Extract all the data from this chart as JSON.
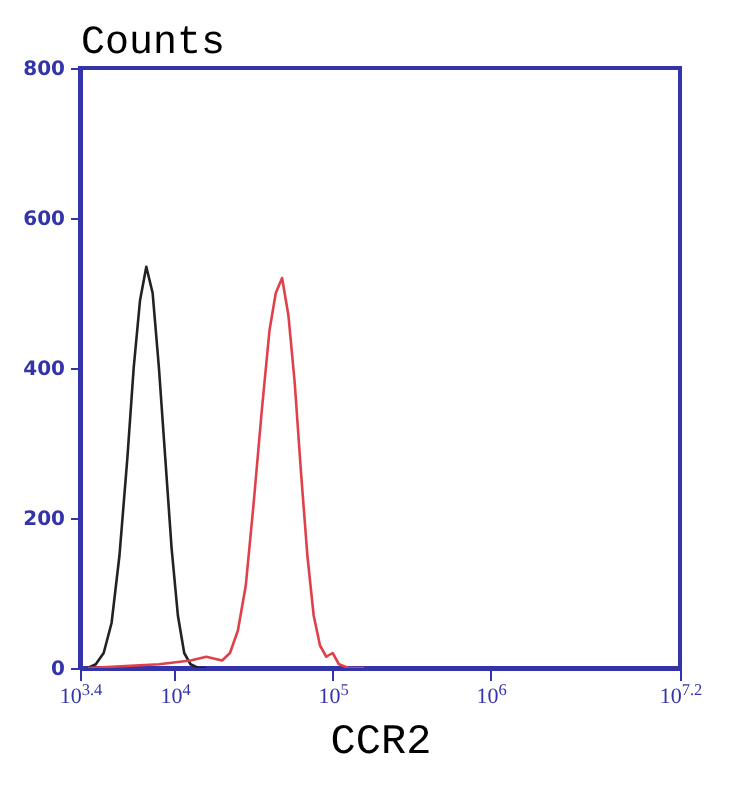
{
  "chart_data": {
    "type": "line",
    "ylabel": "Counts",
    "xlabel": "CCR2",
    "log": "x",
    "grid": false,
    "marker": "none",
    "line_style": "solid",
    "xlim": [
      2512,
      15848932
    ],
    "ylim": [
      0,
      800
    ],
    "yticks": [
      0,
      200,
      400,
      600,
      800
    ],
    "xticks": [
      {
        "value": 2512,
        "label": "10$^{3.4}$"
      },
      {
        "value": 10000,
        "label": "10$^{4}$"
      },
      {
        "value": 100000,
        "label": "10$^{5}$"
      },
      {
        "value": 1000000,
        "label": "10$^{6}$"
      },
      {
        "value": 15848932,
        "label": "10$^{7.2}$"
      }
    ],
    "series": [
      {
        "color": "#222222",
        "x": [
          2818,
          3162,
          3548,
          3981,
          4467,
          5012,
          5495,
          6026,
          6607,
          7244,
          7943,
          8710,
          9550,
          10471,
          11482,
          12589,
          14125,
          15849
        ],
        "values": [
          0,
          5,
          20,
          60,
          150,
          280,
          400,
          490,
          535,
          500,
          400,
          280,
          160,
          70,
          20,
          5,
          0,
          0
        ]
      },
      {
        "color": "#e0404a",
        "x": [
          2818,
          7943,
          12589,
          15849,
          19953,
          22387,
          25119,
          28184,
          31623,
          35481,
          39811,
          43652,
          47863,
          52481,
          57544,
          63096,
          69183,
          75858,
          83176,
          91201,
          100000,
          109648,
          125893,
          158489
        ],
        "values": [
          0,
          5,
          10,
          15,
          10,
          20,
          50,
          110,
          220,
          340,
          450,
          500,
          520,
          470,
          380,
          260,
          150,
          70,
          30,
          15,
          20,
          5,
          0,
          0
        ]
      }
    ]
  }
}
